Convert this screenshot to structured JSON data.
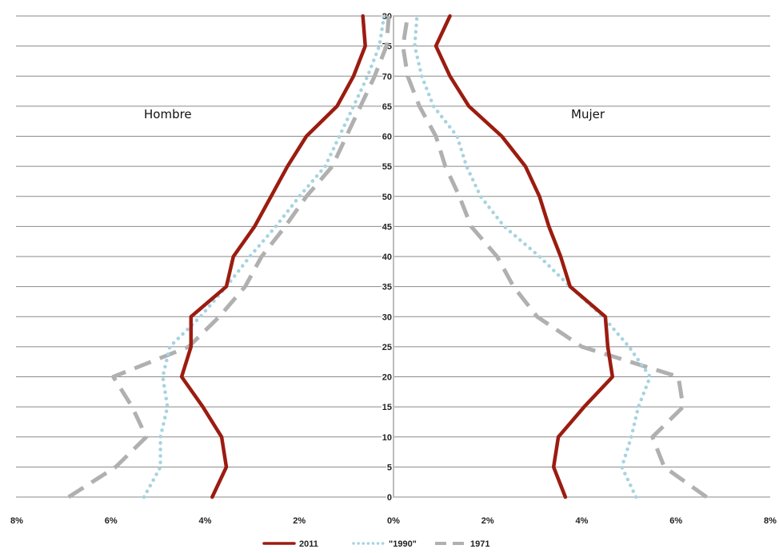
{
  "chart_data": {
    "type": "line",
    "orientation": "population-pyramid",
    "title": "",
    "side_labels": {
      "left": "Hombre",
      "right": "Mujer"
    },
    "x_tick_labels": [
      "8%",
      "6%",
      "4%",
      "2%",
      "0%",
      "2%",
      "4%",
      "6%",
      "8%"
    ],
    "xlim": [
      -8,
      8
    ],
    "ylim": [
      0,
      80
    ],
    "y_ticks": [
      0,
      5,
      10,
      15,
      20,
      25,
      30,
      35,
      40,
      45,
      50,
      55,
      60,
      65,
      70,
      75,
      80
    ],
    "grid": "horizontal",
    "legend_position": "bottom",
    "series": [
      {
        "name": "2011",
        "color": "#9b1c10",
        "style": "solid",
        "y": [
          0,
          5,
          10,
          15,
          20,
          25,
          30,
          35,
          40,
          45,
          50,
          55,
          60,
          65,
          70,
          75,
          80
        ],
        "male": [
          3.85,
          3.55,
          3.65,
          4.05,
          4.5,
          4.3,
          4.3,
          3.55,
          3.4,
          2.95,
          2.6,
          2.25,
          1.85,
          1.2,
          0.85,
          0.6,
          0.65
        ],
        "female": [
          3.65,
          3.4,
          3.5,
          4.05,
          4.65,
          4.55,
          4.5,
          3.75,
          3.55,
          3.3,
          3.1,
          2.8,
          2.3,
          1.6,
          1.2,
          0.9,
          1.2
        ]
      },
      {
        "name": "\"1990\"",
        "color": "#a6d3e0",
        "style": "dotted",
        "y": [
          0,
          5,
          10,
          15,
          20,
          25,
          30,
          35,
          40,
          45,
          50,
          55,
          60,
          65,
          70,
          75,
          80
        ],
        "male": [
          5.3,
          4.95,
          4.95,
          4.8,
          4.9,
          4.75,
          4.1,
          3.55,
          3.05,
          2.5,
          2.0,
          1.45,
          1.15,
          0.85,
          0.55,
          0.3,
          0.2
        ],
        "female": [
          5.15,
          4.85,
          5.05,
          5.2,
          5.45,
          5.0,
          4.45,
          3.75,
          3.1,
          2.35,
          1.85,
          1.55,
          1.35,
          0.85,
          0.6,
          0.45,
          0.5
        ]
      },
      {
        "name": "1971",
        "color": "#b0b0b0",
        "style": "dashed",
        "y": [
          0,
          5,
          10,
          15,
          20,
          25,
          30,
          35,
          40,
          45,
          50,
          55,
          60,
          65,
          70,
          75,
          80
        ],
        "male": [
          6.9,
          5.9,
          5.25,
          5.55,
          5.95,
          4.35,
          3.7,
          3.15,
          2.8,
          2.3,
          1.85,
          1.3,
          1.0,
          0.7,
          0.4,
          0.15,
          0.1
        ],
        "female": [
          6.65,
          5.75,
          5.5,
          6.15,
          6.05,
          4.0,
          3.05,
          2.55,
          2.2,
          1.65,
          1.4,
          1.1,
          0.9,
          0.55,
          0.3,
          0.2,
          0.3
        ]
      }
    ]
  }
}
